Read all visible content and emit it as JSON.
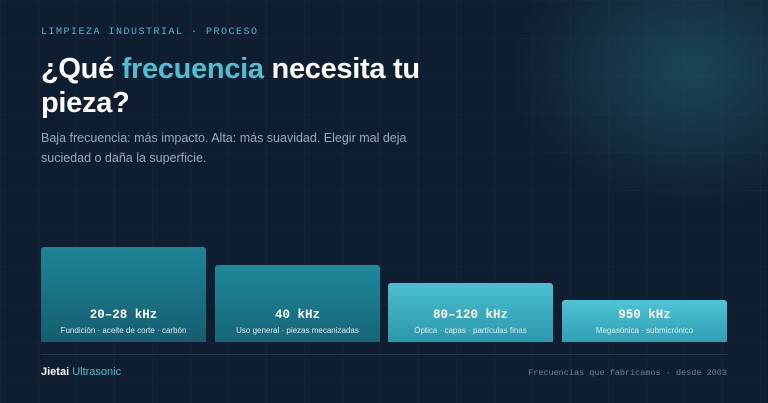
{
  "header": {
    "eyebrow": "LIMPIEZA INDUSTRIAL · PROCESO",
    "title": {
      "before": "¿Qué",
      "highlight": "frecuencia",
      "after": "necesita tu pieza?"
    },
    "subtitle": "Baja frecuencia: más impacto. Alta: más suavidad. Elegir mal deja suciedad o daña la superficie."
  },
  "bars": [
    {
      "frequency": "20–28 kHz",
      "description": "Fundición · aceite de corte · carbón"
    },
    {
      "frequency": "40 kHz",
      "description": "Uso general · piezas mecanizadas"
    },
    {
      "frequency": "80–120 kHz",
      "description": "Óptica · capas · partículas finas"
    },
    {
      "frequency": "950 kHz",
      "description": "Megasónica · submicrónico"
    }
  ],
  "footer": {
    "brand": "Jietai",
    "brand_highlight": "Ultrasonic",
    "note": "Frecuencias que fabricamos · desde 2003"
  }
}
